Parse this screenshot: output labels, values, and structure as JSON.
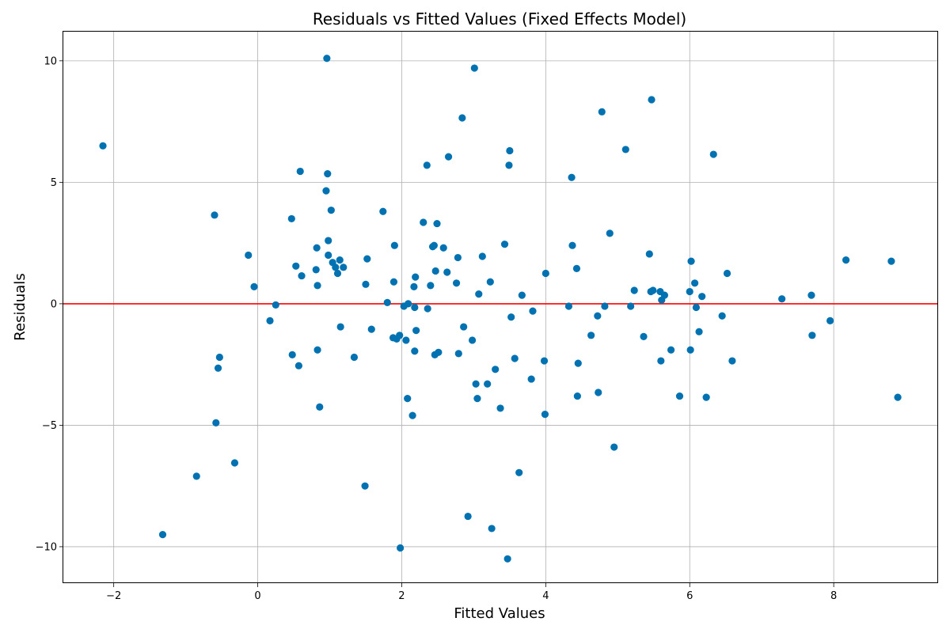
{
  "chart_data": {
    "type": "scatter",
    "title": "Residuals vs Fitted Values (Fixed Effects Model)",
    "xlabel": "Fitted Values",
    "ylabel": "Residuals",
    "xlim": [
      -2.7,
      9.45
    ],
    "ylim": [
      -11.5,
      11.2
    ],
    "x_ticks": [
      -2,
      0,
      2,
      4,
      6,
      8
    ],
    "x_tick_labels": [
      "−2",
      "0",
      "2",
      "4",
      "6",
      "8"
    ],
    "y_ticks": [
      -10,
      -5,
      0,
      5,
      10
    ],
    "y_tick_labels": [
      "−10",
      "−5",
      "0",
      "5",
      "10"
    ],
    "grid": true,
    "reference_line": {
      "y": 0,
      "color": "#ff0000"
    },
    "marker_color": "#0072b2",
    "points": [
      [
        -2.15,
        6.5
      ],
      [
        -1.32,
        -9.5
      ],
      [
        -0.85,
        -7.1
      ],
      [
        -0.6,
        3.65
      ],
      [
        -0.58,
        -4.9
      ],
      [
        -0.55,
        -2.65
      ],
      [
        -0.53,
        -2.2
      ],
      [
        -0.32,
        -6.55
      ],
      [
        -0.13,
        2.0
      ],
      [
        -0.05,
        0.7
      ],
      [
        0.17,
        -0.7
      ],
      [
        0.25,
        -0.05
      ],
      [
        0.47,
        3.5
      ],
      [
        0.48,
        -2.1
      ],
      [
        0.53,
        1.55
      ],
      [
        0.57,
        -2.55
      ],
      [
        0.59,
        5.45
      ],
      [
        0.61,
        1.15
      ],
      [
        0.81,
        1.4
      ],
      [
        0.82,
        2.3
      ],
      [
        0.83,
        0.75
      ],
      [
        0.83,
        -1.9
      ],
      [
        0.86,
        -4.25
      ],
      [
        0.95,
        4.65
      ],
      [
        0.96,
        10.1
      ],
      [
        0.97,
        5.35
      ],
      [
        0.98,
        2.6
      ],
      [
        0.98,
        2.0
      ],
      [
        1.02,
        3.85
      ],
      [
        1.04,
        1.7
      ],
      [
        1.08,
        1.5
      ],
      [
        1.11,
        1.25
      ],
      [
        1.14,
        1.8
      ],
      [
        1.15,
        -0.95
      ],
      [
        1.19,
        1.5
      ],
      [
        1.34,
        -2.2
      ],
      [
        1.49,
        -7.5
      ],
      [
        1.5,
        0.8
      ],
      [
        1.52,
        1.85
      ],
      [
        1.58,
        -1.05
      ],
      [
        1.74,
        3.8
      ],
      [
        1.8,
        0.05
      ],
      [
        1.88,
        -1.4
      ],
      [
        1.89,
        0.9
      ],
      [
        1.9,
        2.4
      ],
      [
        1.93,
        -1.45
      ],
      [
        1.97,
        -1.3
      ],
      [
        1.98,
        -10.05
      ],
      [
        2.03,
        -0.1
      ],
      [
        2.06,
        -1.5
      ],
      [
        2.08,
        -3.9
      ],
      [
        2.09,
        0.0
      ],
      [
        2.15,
        -4.6
      ],
      [
        2.17,
        0.7
      ],
      [
        2.18,
        -0.15
      ],
      [
        2.18,
        -1.95
      ],
      [
        2.19,
        1.1
      ],
      [
        2.2,
        -1.1
      ],
      [
        2.3,
        3.35
      ],
      [
        2.35,
        5.7
      ],
      [
        2.36,
        -0.2
      ],
      [
        2.4,
        0.75
      ],
      [
        2.43,
        2.35
      ],
      [
        2.45,
        2.4
      ],
      [
        2.46,
        -2.1
      ],
      [
        2.47,
        1.35
      ],
      [
        2.49,
        3.3
      ],
      [
        2.51,
        -2.0
      ],
      [
        2.58,
        2.3
      ],
      [
        2.63,
        1.3
      ],
      [
        2.65,
        6.05
      ],
      [
        2.76,
        0.85
      ],
      [
        2.78,
        1.9
      ],
      [
        2.79,
        -2.05
      ],
      [
        2.84,
        7.65
      ],
      [
        2.86,
        -0.95
      ],
      [
        2.92,
        -8.75
      ],
      [
        2.98,
        -1.5
      ],
      [
        3.01,
        9.7
      ],
      [
        3.03,
        -3.3
      ],
      [
        3.05,
        -3.9
      ],
      [
        3.07,
        0.4
      ],
      [
        3.12,
        1.95
      ],
      [
        3.19,
        -3.3
      ],
      [
        3.23,
        0.9
      ],
      [
        3.25,
        -9.25
      ],
      [
        3.3,
        -2.7
      ],
      [
        3.37,
        -4.3
      ],
      [
        3.43,
        2.45
      ],
      [
        3.47,
        -10.5
      ],
      [
        3.49,
        5.7
      ],
      [
        3.5,
        6.3
      ],
      [
        3.52,
        -0.55
      ],
      [
        3.57,
        -2.25
      ],
      [
        3.63,
        -6.95
      ],
      [
        3.67,
        0.35
      ],
      [
        3.8,
        -3.1
      ],
      [
        3.82,
        -0.3
      ],
      [
        3.98,
        -2.35
      ],
      [
        3.99,
        -4.55
      ],
      [
        4.0,
        1.25
      ],
      [
        4.32,
        -0.1
      ],
      [
        4.36,
        5.2
      ],
      [
        4.37,
        2.4
      ],
      [
        4.43,
        1.45
      ],
      [
        4.44,
        -3.8
      ],
      [
        4.45,
        -2.45
      ],
      [
        4.63,
        -1.3
      ],
      [
        4.72,
        -0.5
      ],
      [
        4.73,
        -3.65
      ],
      [
        4.78,
        7.9
      ],
      [
        4.82,
        -0.1
      ],
      [
        4.89,
        2.9
      ],
      [
        4.95,
        -5.9
      ],
      [
        5.11,
        6.35
      ],
      [
        5.18,
        -0.1
      ],
      [
        5.23,
        0.55
      ],
      [
        5.36,
        -1.35
      ],
      [
        5.44,
        2.05
      ],
      [
        5.46,
        0.5
      ],
      [
        5.47,
        8.4
      ],
      [
        5.49,
        0.55
      ],
      [
        5.59,
        0.5
      ],
      [
        5.6,
        -2.35
      ],
      [
        5.61,
        0.15
      ],
      [
        5.65,
        0.35
      ],
      [
        5.74,
        -1.9
      ],
      [
        5.86,
        -3.8
      ],
      [
        6.0,
        0.5
      ],
      [
        6.01,
        -1.9
      ],
      [
        6.02,
        1.75
      ],
      [
        6.07,
        0.85
      ],
      [
        6.09,
        -0.15
      ],
      [
        6.13,
        -1.15
      ],
      [
        6.17,
        0.3
      ],
      [
        6.23,
        -3.85
      ],
      [
        6.33,
        6.15
      ],
      [
        6.45,
        -0.5
      ],
      [
        6.52,
        1.25
      ],
      [
        6.59,
        -2.35
      ],
      [
        7.28,
        0.2
      ],
      [
        7.69,
        0.35
      ],
      [
        7.7,
        -1.3
      ],
      [
        7.95,
        -0.7
      ],
      [
        8.17,
        1.8
      ],
      [
        8.8,
        1.75
      ],
      [
        8.89,
        -3.85
      ]
    ]
  }
}
